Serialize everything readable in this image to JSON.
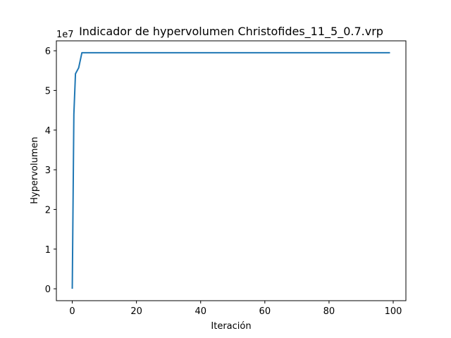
{
  "chart_data": {
    "type": "line",
    "title": "Indicador de hypervolumen Christofides_11_5_0.7.vrp",
    "xlabel": "Iteración",
    "ylabel": "Hypervolumen",
    "y_offset_label": "1e7",
    "xlim": [
      -4.95,
      103.95
    ],
    "ylim": [
      -0.3,
      6.25
    ],
    "xticks": [
      0,
      20,
      40,
      60,
      80,
      100
    ],
    "yticks": [
      0,
      1,
      2,
      3,
      4,
      5,
      6
    ],
    "grid": false,
    "legend": "none",
    "line_color": "#1f77b4",
    "series": [
      {
        "x": [
          0,
          0.5,
          1,
          2,
          3,
          4,
          10,
          20,
          30,
          40,
          50,
          60,
          70,
          80,
          90,
          99
        ],
        "y": [
          0,
          4.4,
          5.42,
          5.57,
          5.95,
          5.95,
          5.95,
          5.95,
          5.95,
          5.95,
          5.95,
          5.95,
          5.95,
          5.95,
          5.95,
          5.95
        ]
      }
    ]
  }
}
